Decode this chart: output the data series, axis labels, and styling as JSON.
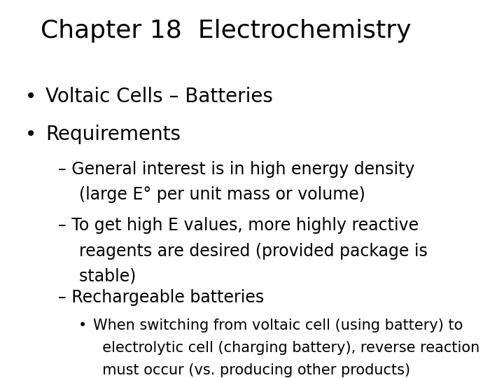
{
  "title": "Chapter 18  Electrochemistry",
  "background_color": "#ffffff",
  "text_color": "#000000",
  "title_fontsize": 26,
  "font_family": "DejaVu Sans",
  "bullet1": "Voltaic Cells – Batteries",
  "bullet2": "Requirements",
  "sub1_line1": "– General interest is in high energy density",
  "sub1_line2": "    (large E° per unit mass or volume)",
  "sub2_line1": "– To get high E values, more highly reactive",
  "sub2_line2": "    reagents are desired (provided package is",
  "sub2_line3": "    stable)",
  "sub3_line1": "– Rechargeable batteries",
  "sub4_line1": "When switching from voltaic cell (using battery) to",
  "sub4_line2": "  electrolytic cell (charging battery), reverse reaction",
  "sub4_line3": "  must occur (vs. producing other products)",
  "bullet_fontsize": 20,
  "sub_fontsize": 17,
  "subsub_fontsize": 15
}
